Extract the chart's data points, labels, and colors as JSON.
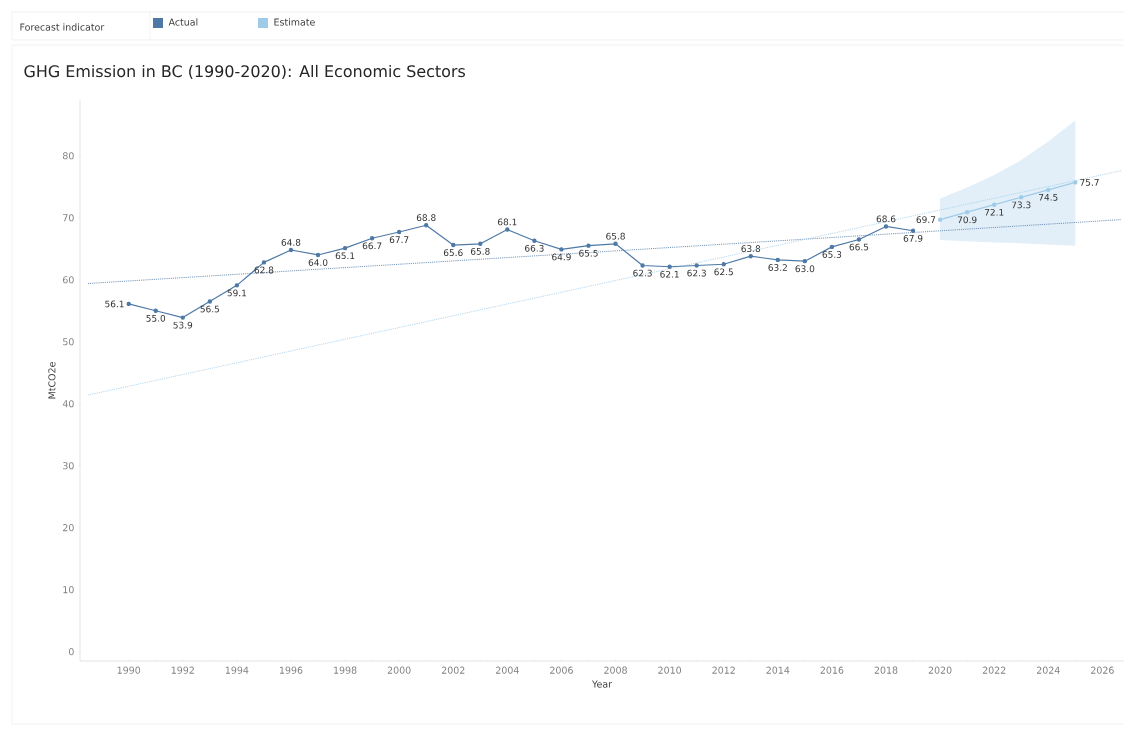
{
  "chart_data": {
    "type": "line",
    "title": "GHG Emission in BC (1990-2020): All Economic Sectors",
    "xlabel": "Year",
    "ylabel": "MtCO2e",
    "legend_title": "Forecast indicator",
    "legend": "top",
    "marker": "circle",
    "line_style": "solid",
    "grid": false,
    "xlim": [
      1988.2,
      2026.8
    ],
    "xticks": [
      1990,
      1992,
      1994,
      1996,
      1998,
      2000,
      2002,
      2004,
      2006,
      2008,
      2010,
      2012,
      2014,
      2016,
      2018,
      2020,
      2022,
      2024,
      2026
    ],
    "ylim": [
      -1.5,
      89
    ],
    "yticks": [
      0,
      10,
      20,
      30,
      40,
      50,
      60,
      70,
      80
    ],
    "series": [
      {
        "name": "Actual",
        "color": "#4e79a7",
        "x": [
          1990,
          1991,
          1992,
          1993,
          1994,
          1995,
          1996,
          1997,
          1998,
          1999,
          2000,
          2001,
          2002,
          2003,
          2004,
          2005,
          2006,
          2007,
          2008,
          2009,
          2010,
          2011,
          2012,
          2013,
          2014,
          2015,
          2016,
          2017,
          2018,
          2019
        ],
        "values": [
          56.1,
          55.0,
          53.9,
          56.5,
          59.1,
          62.8,
          64.8,
          64.0,
          65.1,
          66.7,
          67.7,
          68.8,
          65.6,
          65.8,
          68.1,
          66.3,
          64.9,
          65.5,
          65.8,
          62.3,
          62.1,
          62.3,
          62.5,
          63.8,
          63.2,
          63.0,
          65.3,
          66.5,
          68.6,
          67.9
        ],
        "value_labels": [
          "56.1",
          "55.0",
          "53.9",
          "56.5",
          "59.1",
          "62.8",
          "64.8",
          "64.0",
          "65.1",
          "66.7",
          "67.7",
          "68.8",
          "65.6",
          "65.8",
          "68.1",
          "66.3",
          "64.9",
          "65.5",
          "65.8",
          "62.3",
          "62.1",
          "62.3",
          "62.5",
          "63.8",
          "63.2",
          "63.0",
          "65.3",
          "66.5",
          "68.6",
          "67.9"
        ]
      },
      {
        "name": "Estimate",
        "color": "#a0cbe8",
        "x": [
          2020,
          2021,
          2022,
          2023,
          2024,
          2025
        ],
        "values": [
          69.7,
          70.9,
          72.1,
          73.3,
          74.5,
          75.7
        ],
        "value_labels": [
          "69.7",
          "70.9",
          "72.1",
          "73.3",
          "74.5",
          "75.7"
        ],
        "lower": [
          66.4,
          66.2,
          66.0,
          65.9,
          65.7,
          65.5
        ],
        "upper": [
          73.1,
          74.9,
          76.9,
          79.3,
          82.3,
          85.7
        ]
      },
      {
        "type": "line",
        "color": "#4e79a7",
        "x": [
          1988.5,
          2026.7
        ],
        "values": [
          59.4,
          69.7
        ],
        "marker": "none",
        "line_style": "dotted"
      },
      {
        "type": "line",
        "color": "#a0cbe8",
        "x": [
          1988.5,
          2026.7
        ],
        "values": [
          41.4,
          77.6
        ],
        "marker": "none",
        "line_style": "dotted"
      }
    ]
  }
}
